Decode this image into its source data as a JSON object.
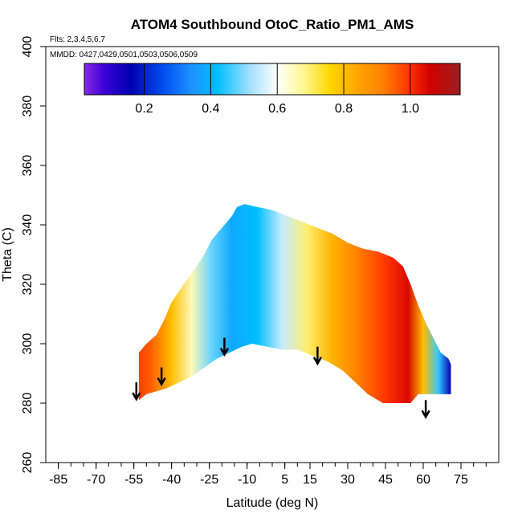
{
  "chart_data": {
    "type": "heatmap",
    "title": "ATOM4 Southbound OtoC_Ratio_PM1_AMS",
    "flights_note": "Flts: 2,3,4,5,6,7",
    "dates_note": "MMDD: 0427,0429,0501,0503,0506,0509",
    "xlabel": "Latitude (deg N)",
    "ylabel": "Theta (C)",
    "xlim": [
      -90,
      90
    ],
    "ylim": [
      260,
      400
    ],
    "x_ticks": [
      -85,
      -70,
      -55,
      -40,
      -25,
      -10,
      5,
      15,
      30,
      45,
      60,
      75
    ],
    "x_tick_labels": [
      "-85",
      "-70",
      "-55",
      "-40",
      "-25",
      "-10",
      "5",
      "15",
      "30",
      "45",
      "60",
      "75"
    ],
    "y_ticks": [
      260,
      280,
      300,
      320,
      340,
      360,
      380,
      400
    ],
    "y_tick_labels": [
      "260",
      "280",
      "300",
      "320",
      "340",
      "360",
      "380",
      "400"
    ],
    "colorbar": {
      "min": 0.02,
      "max": 1.15,
      "ticks": [
        0.2,
        0.4,
        0.6,
        0.8,
        1.0
      ],
      "tick_labels": [
        "0.2",
        "0.4",
        "0.6",
        "0.8",
        "1.0"
      ],
      "stops": [
        {
          "v": 0.02,
          "color": "#8a2be2"
        },
        {
          "v": 0.08,
          "color": "#3b00d8"
        },
        {
          "v": 0.16,
          "color": "#0000b0"
        },
        {
          "v": 0.26,
          "color": "#0050f0"
        },
        {
          "v": 0.34,
          "color": "#1e90ff"
        },
        {
          "v": 0.42,
          "color": "#00bfff"
        },
        {
          "v": 0.52,
          "color": "#a6e0ff"
        },
        {
          "v": 0.6,
          "color": "#ffffff"
        },
        {
          "v": 0.68,
          "color": "#fff68f"
        },
        {
          "v": 0.76,
          "color": "#ffd700"
        },
        {
          "v": 0.84,
          "color": "#ffa500"
        },
        {
          "v": 0.92,
          "color": "#ff7f00"
        },
        {
          "v": 1.0,
          "color": "#ff3000"
        },
        {
          "v": 1.06,
          "color": "#d00000"
        },
        {
          "v": 1.15,
          "color": "#9a2020"
        }
      ]
    },
    "upper_boundary": [
      [
        -53,
        297
      ],
      [
        -50,
        300
      ],
      [
        -46,
        303
      ],
      [
        -43,
        308
      ],
      [
        -40,
        314
      ],
      [
        -36,
        319
      ],
      [
        -31,
        325
      ],
      [
        -27,
        330
      ],
      [
        -24,
        335
      ],
      [
        -20,
        339
      ],
      [
        -16,
        343
      ],
      [
        -14,
        346
      ],
      [
        -11,
        347
      ],
      [
        -6,
        346
      ],
      [
        0,
        345
      ],
      [
        6,
        343
      ],
      [
        12,
        341
      ],
      [
        18,
        339
      ],
      [
        24,
        337
      ],
      [
        30,
        334
      ],
      [
        36,
        332
      ],
      [
        42,
        331
      ],
      [
        48,
        329
      ],
      [
        52,
        326
      ],
      [
        55,
        320
      ],
      [
        58,
        313
      ],
      [
        61,
        307
      ],
      [
        64,
        302
      ],
      [
        67,
        297
      ],
      [
        70,
        295
      ],
      [
        71,
        293
      ]
    ],
    "lower_boundary": [
      [
        71,
        283
      ],
      [
        64,
        283
      ],
      [
        58,
        283
      ],
      [
        55,
        280
      ],
      [
        50,
        280
      ],
      [
        44,
        280
      ],
      [
        38,
        283
      ],
      [
        33,
        287
      ],
      [
        28,
        291
      ],
      [
        22,
        294
      ],
      [
        16,
        296
      ],
      [
        10,
        298
      ],
      [
        4,
        298
      ],
      [
        -2,
        299
      ],
      [
        -8,
        300
      ],
      [
        -12,
        299
      ],
      [
        -17,
        297
      ],
      [
        -22,
        295
      ],
      [
        -27,
        292
      ],
      [
        -32,
        289
      ],
      [
        -37,
        287
      ],
      [
        -42,
        285
      ],
      [
        -46,
        284
      ],
      [
        -50,
        283
      ],
      [
        -53,
        281
      ]
    ],
    "ratio_field_anchors": [
      {
        "lat": -55,
        "ratio": 1.0
      },
      {
        "lat": -48,
        "ratio": 0.95
      },
      {
        "lat": -40,
        "ratio": 0.8
      },
      {
        "lat": -32,
        "ratio": 0.65
      },
      {
        "lat": -24,
        "ratio": 0.48
      },
      {
        "lat": -16,
        "ratio": 0.38
      },
      {
        "lat": -6,
        "ratio": 0.42
      },
      {
        "lat": 4,
        "ratio": 0.55
      },
      {
        "lat": 14,
        "ratio": 0.7
      },
      {
        "lat": 24,
        "ratio": 0.82
      },
      {
        "lat": 34,
        "ratio": 0.92
      },
      {
        "lat": 46,
        "ratio": 1.0
      },
      {
        "lat": 54,
        "ratio": 1.05
      },
      {
        "lat": 60,
        "ratio": 0.8
      },
      {
        "lat": 66,
        "ratio": 0.45
      },
      {
        "lat": 71,
        "ratio": 0.15
      }
    ],
    "arrows": [
      {
        "lat": -54,
        "theta": 287,
        "direction": "down"
      },
      {
        "lat": -44,
        "theta": 292,
        "direction": "down"
      },
      {
        "lat": -19,
        "theta": 302,
        "direction": "down"
      },
      {
        "lat": 18,
        "theta": 299,
        "direction": "down"
      },
      {
        "lat": 61,
        "theta": 281,
        "direction": "down"
      }
    ]
  }
}
